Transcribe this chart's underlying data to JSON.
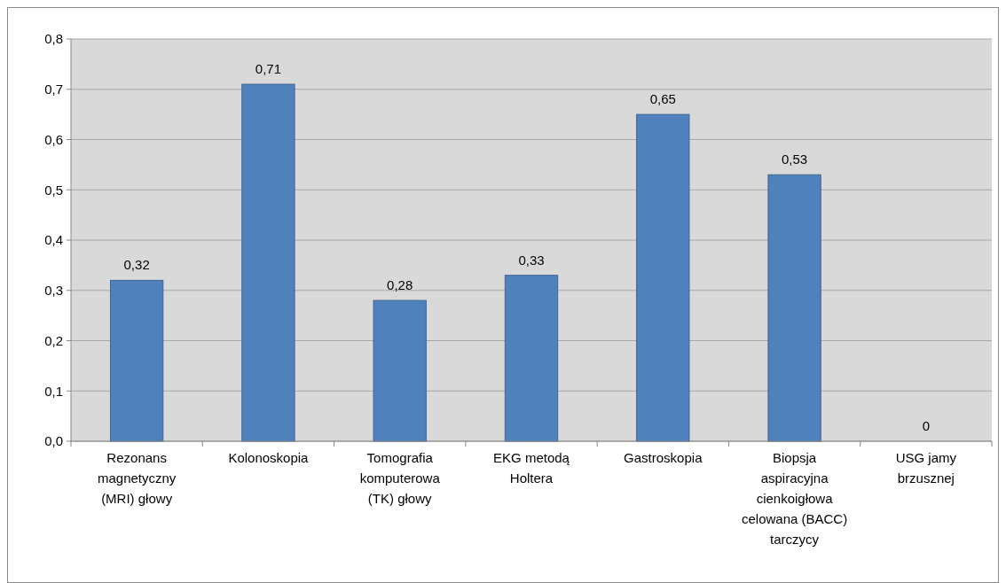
{
  "chart_data": {
    "type": "bar",
    "categories": [
      "Rezonans magnetyczny (MRI) głowy",
      "Kolonoskopia",
      "Tomografia komputerowa (TK) głowy",
      "EKG metodą Holtera",
      "Gastroskopia",
      "Biopsja aspiracyjna cienkoigłowa celowana (BACC) tarczycy",
      "USG jamy brzusznej"
    ],
    "values": [
      0.32,
      0.71,
      0.28,
      0.33,
      0.65,
      0.53,
      0
    ],
    "value_labels": [
      "0,32",
      "0,71",
      "0,28",
      "0,33",
      "0,65",
      "0,53",
      "0"
    ],
    "color": "#4f81bd",
    "ylim": [
      0,
      0.8
    ],
    "yticks": [
      {
        "value": 0,
        "label": "0,0"
      },
      {
        "value": 0.1,
        "label": "0,1"
      },
      {
        "value": 0.2,
        "label": "0,2"
      },
      {
        "value": 0.3,
        "label": "0,3"
      },
      {
        "value": 0.4,
        "label": "0,4"
      },
      {
        "value": 0.5,
        "label": "0,5"
      },
      {
        "value": 0.6,
        "label": "0,6"
      },
      {
        "value": 0.7,
        "label": "0,7"
      },
      {
        "value": 0.8,
        "label": "0,8"
      }
    ],
    "grid": "y"
  }
}
